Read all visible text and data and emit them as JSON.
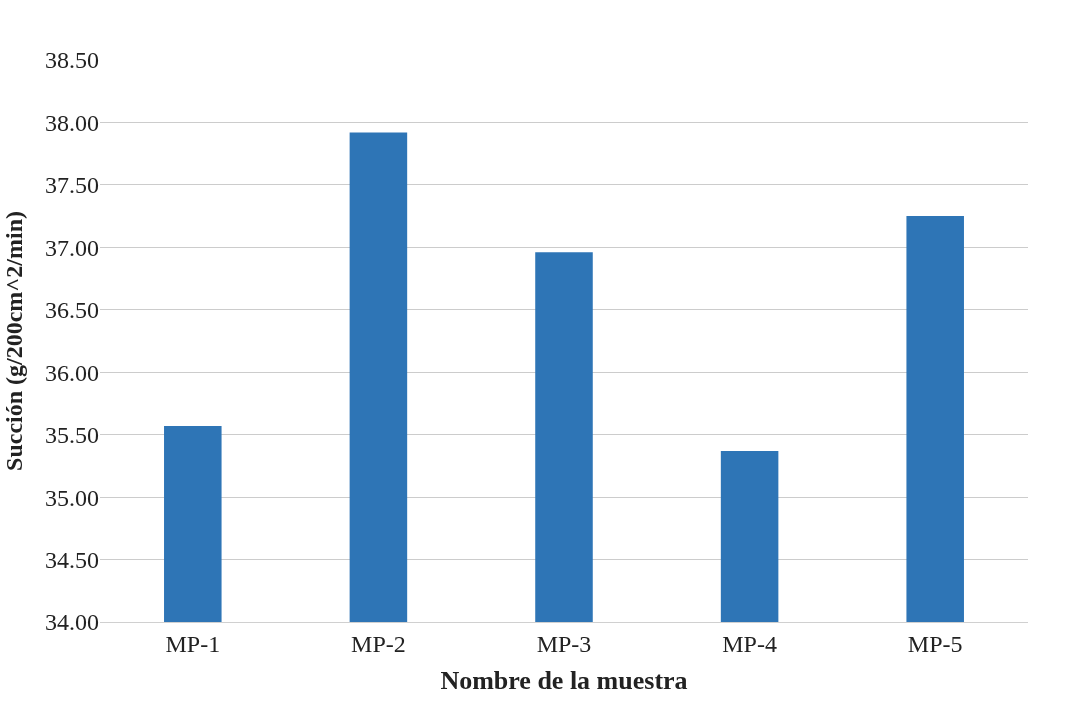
{
  "chart_data": {
    "type": "bar",
    "xlabel": "Nombre de la muestra",
    "ylabel": "Succión (g/200cm^2/min)",
    "categories": [
      "MP-1",
      "MP-2",
      "MP-3",
      "MP-4",
      "MP-5"
    ],
    "values": [
      35.57,
      37.92,
      36.96,
      35.37,
      37.25
    ],
    "color": "#2e75b6",
    "ylim": [
      34,
      38.5
    ],
    "yticks": [
      {
        "value": 34,
        "label": "34.00"
      },
      {
        "value": 34.5,
        "label": "34.50"
      },
      {
        "value": 35,
        "label": "35.00"
      },
      {
        "value": 35.5,
        "label": "35.50"
      },
      {
        "value": 36,
        "label": "36.00"
      },
      {
        "value": 36.5,
        "label": "36.50"
      },
      {
        "value": 37,
        "label": "37.00"
      },
      {
        "value": 37.5,
        "label": "37.50"
      },
      {
        "value": 38,
        "label": "38.00"
      },
      {
        "value": 38.5,
        "label": "38.50"
      }
    ],
    "grid": "y"
  }
}
